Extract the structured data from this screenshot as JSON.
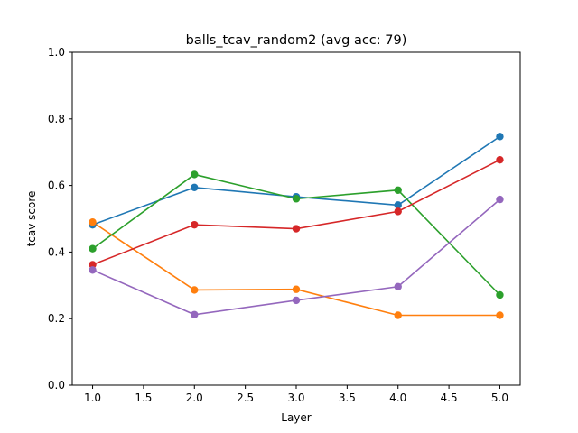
{
  "chart_data": {
    "type": "line",
    "title": "balls_tcav_random2 (avg acc: 79)",
    "xlabel": "Layer",
    "ylabel": "tcav score",
    "xlim": [
      0.8,
      5.2
    ],
    "ylim": [
      0.0,
      1.0
    ],
    "xticks": [
      1.0,
      1.5,
      2.0,
      2.5,
      3.0,
      3.5,
      4.0,
      4.5,
      5.0
    ],
    "xtick_labels": [
      "1.0",
      "1.5",
      "2.0",
      "2.5",
      "3.0",
      "3.5",
      "4.0",
      "4.5",
      "5.0"
    ],
    "yticks": [
      0.0,
      0.2,
      0.4,
      0.6,
      0.8,
      1.0
    ],
    "ytick_labels": [
      "0.0",
      "0.2",
      "0.4",
      "0.6",
      "0.8",
      "1.0"
    ],
    "grid": false,
    "x": [
      1,
      2,
      3,
      4,
      5
    ],
    "series": [
      {
        "color": "#1f77b4",
        "values": [
          0.482,
          0.594,
          0.566,
          0.541,
          0.747
        ]
      },
      {
        "color": "#ff7f0e",
        "values": [
          0.49,
          0.286,
          0.288,
          0.21,
          0.21
        ]
      },
      {
        "color": "#2ca02c",
        "values": [
          0.41,
          0.633,
          0.56,
          0.586,
          0.271
        ]
      },
      {
        "color": "#d62728",
        "values": [
          0.362,
          0.482,
          0.47,
          0.522,
          0.677
        ]
      },
      {
        "color": "#9467bd",
        "values": [
          0.346,
          0.212,
          0.255,
          0.296,
          0.558
        ]
      }
    ]
  }
}
